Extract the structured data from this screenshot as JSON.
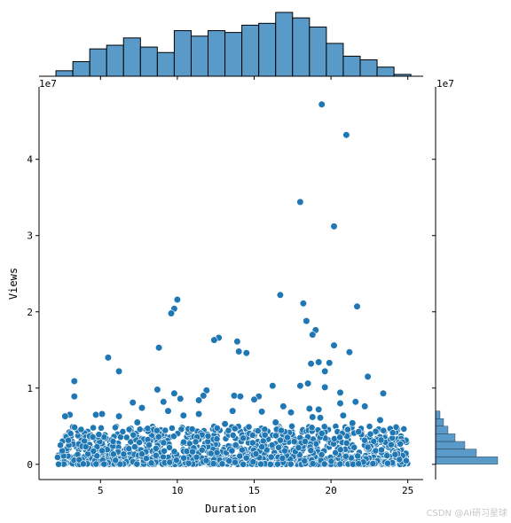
{
  "chart_data": {
    "type": "scatter",
    "kind": "jointplot",
    "xlabel": "Duration",
    "ylabel": "Views",
    "y_offset_label": "1e7",
    "marginal_offset_label": "1e7",
    "xlim": [
      1,
      26
    ],
    "ylim": [
      -2000000,
      49500000
    ],
    "x_ticks": [
      5,
      10,
      15,
      20,
      25
    ],
    "y_ticks": [
      0,
      10000000,
      20000000,
      30000000,
      40000000
    ],
    "y_tick_labels": [
      "0",
      "1",
      "2",
      "3",
      "4"
    ],
    "colors": {
      "points": "#1f77b4",
      "bars": "#5a9ac9",
      "edge": "#ffffff",
      "bar_edge": "#000000"
    },
    "outliers": [
      {
        "x": 19.4,
        "y": 47200000
      },
      {
        "x": 21.0,
        "y": 43200000
      },
      {
        "x": 18.0,
        "y": 34400000
      },
      {
        "x": 20.2,
        "y": 31200000
      },
      {
        "x": 16.7,
        "y": 22200000
      },
      {
        "x": 10.0,
        "y": 21600000
      },
      {
        "x": 18.2,
        "y": 21100000
      },
      {
        "x": 21.7,
        "y": 20700000
      },
      {
        "x": 9.8,
        "y": 20400000
      },
      {
        "x": 9.6,
        "y": 19800000
      },
      {
        "x": 18.4,
        "y": 18800000
      },
      {
        "x": 19.0,
        "y": 17600000
      },
      {
        "x": 18.8,
        "y": 17000000
      },
      {
        "x": 12.7,
        "y": 16600000
      },
      {
        "x": 12.4,
        "y": 16300000
      },
      {
        "x": 13.9,
        "y": 16100000
      },
      {
        "x": 20.2,
        "y": 15600000
      },
      {
        "x": 8.8,
        "y": 15300000
      },
      {
        "x": 14.0,
        "y": 14800000
      },
      {
        "x": 14.5,
        "y": 14600000
      },
      {
        "x": 21.2,
        "y": 14700000
      },
      {
        "x": 5.5,
        "y": 14000000
      },
      {
        "x": 19.2,
        "y": 13400000
      },
      {
        "x": 18.7,
        "y": 13200000
      },
      {
        "x": 19.9,
        "y": 13300000
      },
      {
        "x": 6.2,
        "y": 12200000
      },
      {
        "x": 19.6,
        "y": 12200000
      },
      {
        "x": 22.4,
        "y": 11500000
      },
      {
        "x": 3.3,
        "y": 10900000
      },
      {
        "x": 18.5,
        "y": 10600000
      },
      {
        "x": 16.2,
        "y": 10300000
      },
      {
        "x": 18.0,
        "y": 10300000
      },
      {
        "x": 8.7,
        "y": 9800000
      },
      {
        "x": 11.9,
        "y": 9700000
      },
      {
        "x": 19.6,
        "y": 10100000
      },
      {
        "x": 9.8,
        "y": 9300000
      },
      {
        "x": 20.6,
        "y": 9400000
      },
      {
        "x": 23.4,
        "y": 9300000
      },
      {
        "x": 11.7,
        "y": 9000000
      },
      {
        "x": 13.7,
        "y": 9000000
      },
      {
        "x": 14.1,
        "y": 8900000
      },
      {
        "x": 15.3,
        "y": 8900000
      },
      {
        "x": 3.3,
        "y": 8900000
      },
      {
        "x": 10.2,
        "y": 8600000
      },
      {
        "x": 15.0,
        "y": 8500000
      },
      {
        "x": 9.1,
        "y": 8200000
      },
      {
        "x": 11.4,
        "y": 8400000
      },
      {
        "x": 21.6,
        "y": 8200000
      },
      {
        "x": 20.6,
        "y": 8000000
      },
      {
        "x": 7.1,
        "y": 8100000
      },
      {
        "x": 16.9,
        "y": 7600000
      },
      {
        "x": 18.6,
        "y": 7300000
      },
      {
        "x": 7.7,
        "y": 7400000
      },
      {
        "x": 22.2,
        "y": 7600000
      },
      {
        "x": 19.2,
        "y": 7200000
      },
      {
        "x": 9.4,
        "y": 7000000
      },
      {
        "x": 13.6,
        "y": 7000000
      },
      {
        "x": 15.5,
        "y": 6900000
      },
      {
        "x": 17.4,
        "y": 6800000
      },
      {
        "x": 11.4,
        "y": 6600000
      },
      {
        "x": 4.7,
        "y": 6500000
      },
      {
        "x": 3.0,
        "y": 6500000
      },
      {
        "x": 2.7,
        "y": 6300000
      },
      {
        "x": 6.2,
        "y": 6300000
      },
      {
        "x": 10.4,
        "y": 6400000
      },
      {
        "x": 18.8,
        "y": 6200000
      },
      {
        "x": 5.1,
        "y": 6600000
      },
      {
        "x": 19.3,
        "y": 6100000
      },
      {
        "x": 20.8,
        "y": 6400000
      },
      {
        "x": 23.2,
        "y": 5800000
      },
      {
        "x": 16.4,
        "y": 5500000
      },
      {
        "x": 7.4,
        "y": 5500000
      },
      {
        "x": 13.1,
        "y": 5300000
      },
      {
        "x": 21.4,
        "y": 5400000
      }
    ],
    "bulk": {
      "x_range": [
        2.2,
        25.0
      ],
      "y_range": [
        0,
        5000000
      ],
      "count": 1300,
      "note": "dense overlapping cluster of points along the bottom"
    },
    "x_marginal_histogram": {
      "bin_edges": [
        2.1,
        3.2,
        4.3,
        5.4,
        6.5,
        7.6,
        8.7,
        9.8,
        10.9,
        12.0,
        13.1,
        14.2,
        15.3,
        16.4,
        17.5,
        18.6,
        19.7,
        20.8,
        21.9,
        23.0,
        24.1,
        25.2
      ],
      "counts": [
        3,
        8,
        15,
        17,
        21,
        16,
        13,
        25,
        22,
        25,
        24,
        28,
        29,
        35,
        32,
        27,
        18,
        11,
        9,
        5,
        1
      ]
    },
    "y_marginal_histogram": {
      "bin_edges": [
        0,
        1000000,
        2000000,
        3000000,
        4000000,
        5000000,
        6000000,
        7000000
      ],
      "counts": [
        70,
        46,
        33,
        22,
        14,
        9,
        5
      ]
    }
  },
  "watermark": "CSDN @AI研习星球"
}
